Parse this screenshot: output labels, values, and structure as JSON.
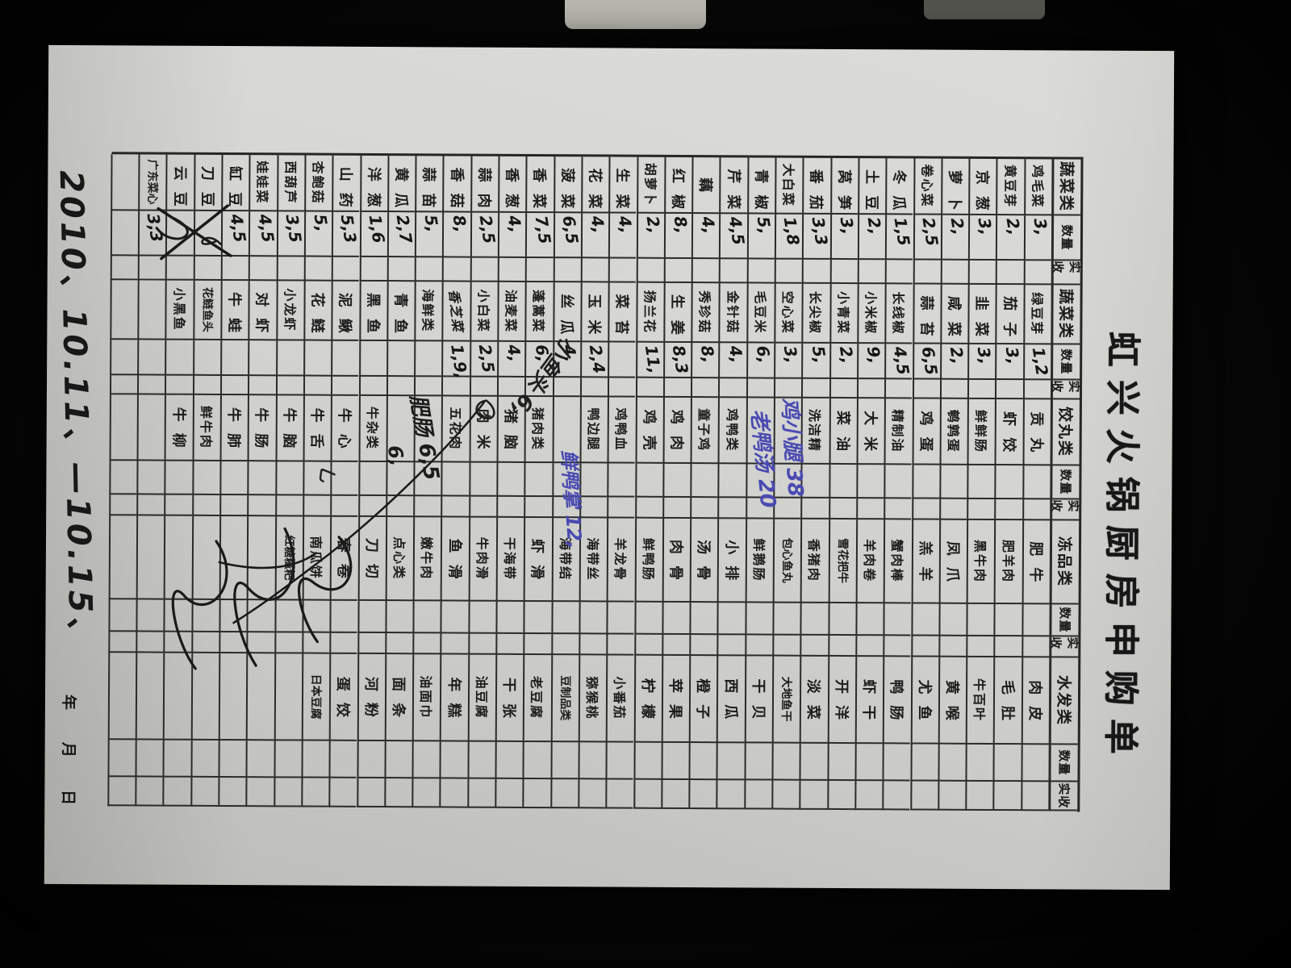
{
  "scene": {
    "background_color": "#070707",
    "paper_color": "#d6d5d2",
    "ink_blue": "#4a4ab2",
    "ink_dark": "#1c1c1c"
  },
  "form": {
    "title": "虹兴火锅厨房申购单",
    "header_labels": {
      "qty": "数量",
      "recv": "实收"
    },
    "columns": [
      {
        "header": "蔬菜类",
        "items": [
          {
            "n": "鸡毛菜",
            "q": "3,"
          },
          {
            "n": "黄豆芽",
            "q": "2,"
          },
          {
            "n": "京葱",
            "q": "3,"
          },
          {
            "n": "萝卜",
            "q": "2,"
          },
          {
            "n": "卷心菜",
            "q": "2,5"
          },
          {
            "n": "冬瓜",
            "q": "1,5"
          },
          {
            "n": "土豆",
            "q": "2,"
          },
          {
            "n": "莴笋",
            "q": "3,"
          },
          {
            "n": "番茄",
            "q": "3,3"
          },
          {
            "n": "大白菜",
            "q": "1,8"
          },
          {
            "n": "青椒",
            "q": "5,"
          },
          {
            "n": "芹菜",
            "q": "4,5"
          },
          {
            "n": "藕",
            "q": "4,"
          },
          {
            "n": "红椒",
            "q": "8,"
          },
          {
            "n": "胡萝卜",
            "q": "2,"
          },
          {
            "n": "生菜",
            "q": "4,"
          },
          {
            "n": "花菜",
            "q": "4,"
          },
          {
            "n": "菠菜",
            "q": "6,5"
          },
          {
            "n": "香菜",
            "q": "7,5"
          },
          {
            "n": "香葱",
            "q": "4,"
          },
          {
            "n": "蒜肉",
            "q": "2,5"
          },
          {
            "n": "香菇",
            "q": "8,"
          },
          {
            "n": "蒜苗",
            "q": "5,"
          },
          {
            "n": "黄瓜",
            "q": "2,7"
          },
          {
            "n": "洋葱",
            "q": "1,6"
          },
          {
            "n": "山药",
            "q": "5,3"
          },
          {
            "n": "杏鲍菇",
            "q": "5,"
          },
          {
            "n": "西葫芦",
            "q": "3,5"
          },
          {
            "n": "娃娃菜",
            "q": "4,5"
          },
          {
            "n": "缸豆",
            "q": "4,5"
          },
          {
            "n": "刀豆",
            "q": "",
            "x": 1
          },
          {
            "n": "云豆",
            "q": "",
            "x": 1
          },
          {
            "n": "广东菜心",
            "q": "3,3"
          },
          null
        ]
      },
      {
        "header": "蔬菜类",
        "items": [
          {
            "n": "绿豆芽",
            "q": "1,2"
          },
          {
            "n": "茄子",
            "q": "3,"
          },
          {
            "n": "韭菜",
            "q": "3,"
          },
          {
            "n": "咸菜",
            "q": "2,"
          },
          {
            "n": "蒜苔",
            "q": "6,5"
          },
          {
            "n": "长线椒",
            "q": "4,5"
          },
          {
            "n": "小米椒",
            "q": "9,"
          },
          {
            "n": "小青菜",
            "q": "2,"
          },
          {
            "n": "长尖椒",
            "q": "5,"
          },
          {
            "n": "空心菜",
            "q": "3,"
          },
          {
            "n": "毛豆米",
            "q": "6,"
          },
          {
            "n": "金针菇",
            "q": "4,"
          },
          {
            "n": "秀珍菇",
            "q": "8,"
          },
          {
            "n": "生姜",
            "q": "8,3"
          },
          {
            "n": "扬兰花",
            "q": "11,"
          },
          {
            "n": "菜苔",
            "q": ""
          },
          {
            "n": "玉米",
            "q": "2,4"
          },
          {
            "n": "丝瓜",
            "q": "4,"
          },
          {
            "n": "蓬蒿菜",
            "q": "6,"
          },
          {
            "n": "油麦菜",
            "q": "4,"
          },
          {
            "n": "小白菜",
            "q": "2,5"
          },
          {
            "n": "香芝菜",
            "q": "1,9,",
            "h": 1
          },
          {
            "n": "海鲜类",
            "q": "",
            "s": 1
          },
          {
            "n": "青鱼",
            "q": ""
          },
          {
            "n": "黑鱼",
            "q": ""
          },
          {
            "n": "泥鳅",
            "q": ""
          },
          {
            "n": "花鲢",
            "q": ""
          },
          {
            "n": "小龙虾",
            "q": ""
          },
          {
            "n": "对虾",
            "q": ""
          },
          {
            "n": "牛蛙",
            "q": ""
          },
          {
            "n": "花鲢鱼头",
            "q": ""
          },
          {
            "n": "小黑鱼",
            "q": ""
          },
          null,
          null
        ]
      },
      {
        "header": "饺丸类",
        "items": [
          {
            "n": "贡丸",
            "q": ""
          },
          {
            "n": "虾饺",
            "q": ""
          },
          {
            "n": "鲜鲜肠",
            "q": ""
          },
          {
            "n": "鹌鹑蛋",
            "q": ""
          },
          {
            "n": "鸡蛋",
            "q": ""
          },
          {
            "n": "精制油",
            "q": ""
          },
          {
            "n": "大米",
            "q": ""
          },
          {
            "n": "菜油",
            "q": ""
          },
          {
            "n": "洗洁精",
            "q": ""
          },
          null,
          null,
          {
            "n": "鸡鸭类",
            "q": "",
            "s": 1
          },
          {
            "n": "童子鸡",
            "q": ""
          },
          {
            "n": "鸡肉",
            "q": ""
          },
          {
            "n": "鸡壳",
            "q": ""
          },
          {
            "n": "鸡鸭血",
            "q": ""
          },
          {
            "n": "鸭边腿",
            "q": ""
          },
          null,
          {
            "n": "猪肉类",
            "q": "",
            "s": 1
          },
          {
            "n": "猪脑",
            "q": ""
          },
          {
            "n": "肉米",
            "q": ""
          },
          {
            "n": "五花肉",
            "q": ""
          },
          null,
          null,
          {
            "n": "牛杂类",
            "q": "",
            "s": 1
          },
          {
            "n": "牛心",
            "q": ""
          },
          {
            "n": "牛舌",
            "q": ""
          },
          {
            "n": "牛脑",
            "q": ""
          },
          {
            "n": "牛肠",
            "q": ""
          },
          {
            "n": "牛肺",
            "q": ""
          },
          {
            "n": "鲜牛肉",
            "q": ""
          },
          {
            "n": "牛柳",
            "q": ""
          },
          null,
          null
        ]
      },
      {
        "header": "冻品类",
        "items": [
          {
            "n": "肥牛",
            "q": ""
          },
          {
            "n": "肥羊肉",
            "q": ""
          },
          {
            "n": "黑牛肉",
            "q": ""
          },
          {
            "n": "凤爪",
            "q": ""
          },
          {
            "n": "羔羊",
            "q": ""
          },
          {
            "n": "蟹肉棒",
            "q": ""
          },
          {
            "n": "羊肉卷",
            "q": ""
          },
          {
            "n": "雪花把牛",
            "q": ""
          },
          {
            "n": "香猪肉",
            "q": ""
          },
          {
            "n": "包心鱼丸",
            "q": ""
          },
          {
            "n": "鲜鹅肠",
            "q": ""
          },
          {
            "n": "小排",
            "q": ""
          },
          {
            "n": "汤骨",
            "q": ""
          },
          {
            "n": "肉骨",
            "q": ""
          },
          {
            "n": "鲜鸭肠",
            "q": ""
          },
          {
            "n": "羊龙骨",
            "q": ""
          },
          {
            "n": "海带丝",
            "q": ""
          },
          {
            "n": "海带结",
            "q": ""
          },
          {
            "n": "虾滑",
            "q": ""
          },
          {
            "n": "干海带",
            "q": ""
          },
          {
            "n": "牛肉滑",
            "q": ""
          },
          {
            "n": "鱼滑",
            "q": ""
          },
          {
            "n": "嫩牛肉",
            "q": ""
          },
          {
            "n": "点心类",
            "q": "",
            "s": 1
          },
          {
            "n": "刀切",
            "q": ""
          },
          {
            "n": "春卷",
            "q": ""
          },
          {
            "n": "南瓜饼",
            "q": ""
          },
          {
            "n": "红糖糍粑",
            "q": ""
          },
          null,
          null,
          null,
          null,
          null,
          null
        ]
      },
      {
        "header": "水发类",
        "items": [
          {
            "n": "肉皮",
            "q": ""
          },
          {
            "n": "毛肚",
            "q": ""
          },
          {
            "n": "牛百叶",
            "q": ""
          },
          {
            "n": "黄喉",
            "q": ""
          },
          {
            "n": "尤鱼",
            "q": ""
          },
          {
            "n": "鸭肠",
            "q": ""
          },
          {
            "n": "虾干",
            "q": ""
          },
          {
            "n": "开洋",
            "q": ""
          },
          {
            "n": "淡菜",
            "q": ""
          },
          {
            "n": "大地鱼干",
            "q": ""
          },
          {
            "n": "干贝",
            "q": ""
          },
          {
            "n": "西瓜",
            "q": ""
          },
          {
            "n": "橙子",
            "q": ""
          },
          {
            "n": "苹果",
            "q": ""
          },
          {
            "n": "柠檬",
            "q": ""
          },
          {
            "n": "小番茄",
            "q": ""
          },
          {
            "n": "猕猴桃",
            "q": ""
          },
          {
            "n": "豆制品类",
            "q": "",
            "s": 1
          },
          {
            "n": "老豆腐",
            "q": ""
          },
          {
            "n": "干张",
            "q": ""
          },
          {
            "n": "油豆腐",
            "q": ""
          },
          {
            "n": "年糕",
            "q": ""
          },
          {
            "n": "油面巾",
            "q": ""
          },
          {
            "n": "面条",
            "q": ""
          },
          {
            "n": "河粉",
            "q": ""
          },
          {
            "n": "蛋饺",
            "q": ""
          },
          {
            "n": "日本豆腐",
            "q": ""
          },
          null,
          null,
          null,
          null,
          null,
          null,
          null
        ]
      }
    ],
    "annotations": [
      {
        "id": "note_a",
        "text": "鸡小腿 38",
        "color": "#4a4ab2"
      },
      {
        "id": "note_b",
        "text": "老鸭汤 20",
        "color": "#4a4ab2"
      },
      {
        "id": "note_c",
        "text": "鲜鸭掌 12,",
        "color": "#4a4ab2"
      },
      {
        "id": "note_d",
        "text": "肥肠 6,5",
        "color": "#1c1c1c"
      },
      {
        "id": "note_d2",
        "text": "6,",
        "color": "#1c1c1c"
      },
      {
        "id": "note_f",
        "text": "小鱼头 6,",
        "color": "#202020"
      },
      {
        "id": "note_tick",
        "text": "乚",
        "color": "#202020"
      }
    ],
    "date_line": {
      "handwritten": "2010、10.11、—10.15、",
      "year": "年",
      "month": "月",
      "day": "日"
    }
  }
}
